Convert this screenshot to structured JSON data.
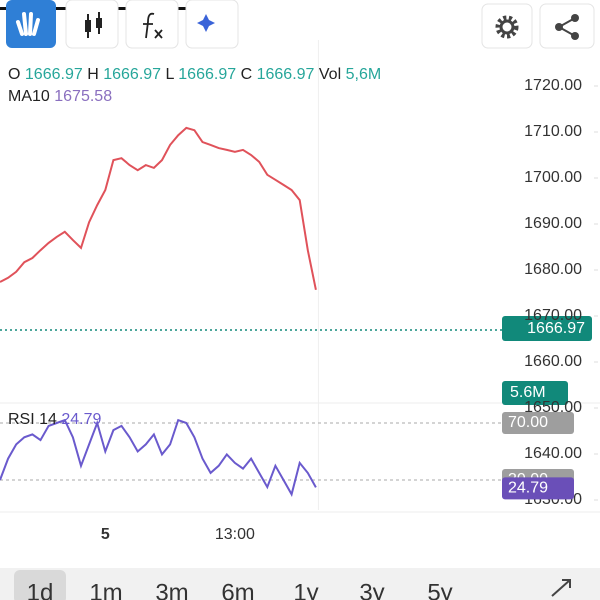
{
  "header": {
    "o_label": "O",
    "o": "1666.97",
    "h_label": "H",
    "h": "1666.97",
    "l_label": "L",
    "l": "1666.97",
    "c_label": "C",
    "c": "1666.97",
    "vol_label": "Vol",
    "vol": "5,6M",
    "ma_label": "MA10",
    "ma": "1675.58"
  },
  "badges": {
    "price": "1666.97",
    "volume": "5.6M"
  },
  "rsi_legend": {
    "label": "RSI 14",
    "value": "24.79"
  },
  "timeframes": [
    "1d",
    "1m",
    "3m",
    "6m",
    "1y",
    "3y",
    "5y"
  ],
  "chart_data": [
    {
      "type": "line",
      "color": "#e0525a",
      "categories": [
        null,
        null,
        null,
        null,
        null,
        null,
        null,
        null,
        null,
        null,
        null,
        null,
        null,
        "5",
        null,
        null,
        null,
        null,
        null,
        null,
        null,
        null,
        null,
        null,
        null,
        null,
        null,
        null,
        null,
        "13:00",
        null,
        null,
        null,
        null,
        null,
        null,
        null,
        null,
        null,
        null
      ],
      "values": [
        1677.4,
        1678.3,
        1679.6,
        1681.7,
        1682.6,
        1684.3,
        1685.9,
        1687.2,
        1688.3,
        1686.5,
        1684.8,
        1690.4,
        1694.1,
        1697.4,
        1703.9,
        1704.3,
        1702.8,
        1701.7,
        1702.8,
        1702.2,
        1703.9,
        1707.2,
        1709.3,
        1710.9,
        1710.4,
        1707.8,
        1707.2,
        1706.5,
        1706.1,
        1705.7,
        1706.1,
        1705,
        1703.5,
        1700.7,
        1699.6,
        1698.5,
        1697.4,
        1695.2,
        1684.3,
        1675.7
      ],
      "ylim": [
        1625,
        1730
      ],
      "yticks": [
        {
          "value": 1720,
          "label": "1720.00"
        },
        {
          "value": 1710,
          "label": "1710.00"
        },
        {
          "value": 1700,
          "label": "1700.00"
        },
        {
          "value": 1690,
          "label": "1690.00"
        },
        {
          "value": 1680,
          "label": "1680.00"
        },
        {
          "value": 1670,
          "label": "1670.00"
        },
        {
          "value": 1660,
          "label": "1660.00"
        },
        {
          "value": 1650,
          "label": "1650.00"
        },
        {
          "value": 1640,
          "label": "1640.00"
        },
        {
          "value": 1630,
          "label": "1630.00"
        }
      ],
      "current": 1666.97
    },
    {
      "type": "line",
      "color": "#6a5acd",
      "values": [
        30,
        45,
        55,
        60,
        62,
        58,
        68,
        70,
        72,
        60,
        40,
        55,
        70,
        50,
        65,
        68,
        60,
        50,
        55,
        62,
        48,
        55,
        72,
        70,
        60,
        45,
        35,
        40,
        48,
        42,
        38,
        45,
        35,
        25,
        40,
        30,
        20,
        42,
        35,
        24.79
      ],
      "ylim": [
        10,
        80
      ],
      "yticks": [
        {
          "value": 70,
          "label": "70.00"
        },
        {
          "value": 30,
          "label": "30.00"
        }
      ]
    }
  ]
}
